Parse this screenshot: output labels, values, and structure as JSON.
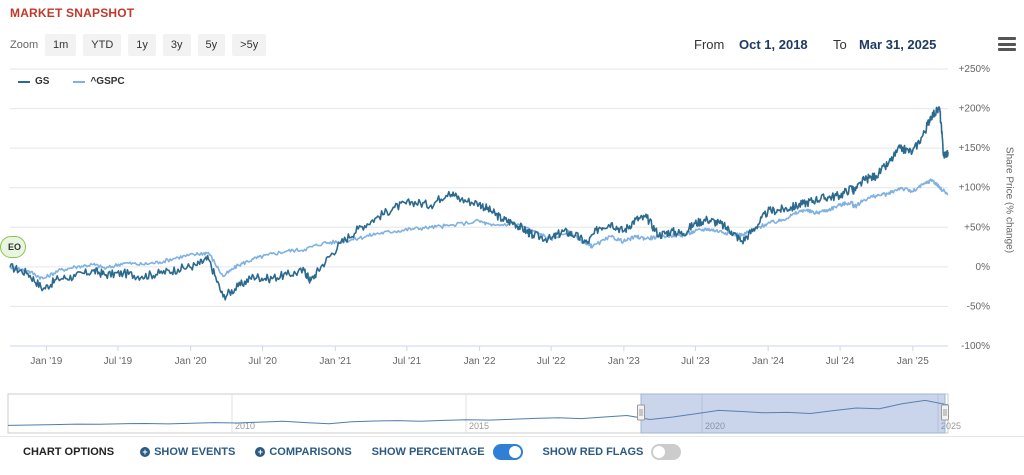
{
  "header": {
    "title": "MARKET SNAPSHOT",
    "zoom_label": "Zoom",
    "zoom_buttons": [
      "1m",
      "YTD",
      "1y",
      "3y",
      "5y",
      ">5y"
    ],
    "from_label": "From",
    "from_value": "Oct 1, 2018",
    "to_label": "To",
    "to_value": "Mar 31, 2025"
  },
  "event_marker": "EO",
  "navigator": {
    "year_labels": [
      "2010",
      "2015",
      "2020",
      "2025"
    ]
  },
  "options": {
    "chart_options": "CHART OPTIONS",
    "show_events": "SHOW EVENTS",
    "comparisons": "COMPARISONS",
    "show_percentage": "SHOW PERCENTAGE",
    "show_percentage_on": true,
    "show_red_flags": "SHOW RED FLAGS",
    "show_red_flags_on": false
  },
  "colors": {
    "gs": "#2b6a8e",
    "spx": "#7fb2e0",
    "accent": "#2f7fd6",
    "title": "#c0392b"
  },
  "chart_data": {
    "type": "line",
    "ylabel": "Share Price (% change)",
    "ylim": [
      -100,
      250
    ],
    "yticks": [
      250,
      200,
      150,
      100,
      50,
      0,
      -50,
      -100
    ],
    "ytick_labels": [
      "+250%",
      "+200%",
      "+150%",
      "+100%",
      "+50%",
      "0%",
      "-50%",
      "-100%"
    ],
    "xlim": [
      "2018-10-01",
      "2025-03-31"
    ],
    "xticks": [
      "2019-01-01",
      "2019-07-01",
      "2020-01-01",
      "2020-07-01",
      "2021-01-01",
      "2021-07-01",
      "2022-01-01",
      "2022-07-01",
      "2023-01-01",
      "2023-07-01",
      "2024-01-01",
      "2024-07-01",
      "2025-01-01"
    ],
    "xtick_labels": [
      "Jan '19",
      "Jul '19",
      "Jan '20",
      "Jul '20",
      "Jan '21",
      "Jul '21",
      "Jan '22",
      "Jul '22",
      "Jan '23",
      "Jul '23",
      "Jan '24",
      "Jul '24",
      "Jan '25"
    ],
    "grid": true,
    "legend": "top-left",
    "series": [
      {
        "name": "GS",
        "x": [
          "2018-10-01",
          "2018-11-15",
          "2018-12-24",
          "2019-01-31",
          "2019-03-15",
          "2019-04-30",
          "2019-06-01",
          "2019-07-15",
          "2019-08-31",
          "2019-10-15",
          "2019-11-30",
          "2020-01-15",
          "2020-02-15",
          "2020-03-23",
          "2020-04-30",
          "2020-06-08",
          "2020-07-15",
          "2020-08-31",
          "2020-10-15",
          "2020-10-30",
          "2020-11-30",
          "2021-01-15",
          "2021-02-28",
          "2021-04-15",
          "2021-05-31",
          "2021-07-15",
          "2021-08-31",
          "2021-10-15",
          "2021-11-15",
          "2021-12-31",
          "2022-01-31",
          "2022-02-28",
          "2022-03-31",
          "2022-04-30",
          "2022-05-15",
          "2022-06-30",
          "2022-07-31",
          "2022-08-31",
          "2022-09-30",
          "2022-10-31",
          "2022-11-30",
          "2022-12-31",
          "2023-01-31",
          "2023-02-28",
          "2023-03-31",
          "2023-04-30",
          "2023-05-31",
          "2023-06-30",
          "2023-07-31",
          "2023-08-31",
          "2023-09-30",
          "2023-10-27",
          "2023-11-30",
          "2023-12-31",
          "2024-01-31",
          "2024-02-29",
          "2024-03-31",
          "2024-04-30",
          "2024-05-31",
          "2024-06-30",
          "2024-07-31",
          "2024-08-05",
          "2024-08-31",
          "2024-09-30",
          "2024-10-31",
          "2024-11-30",
          "2024-12-31",
          "2025-01-31",
          "2025-02-15",
          "2025-03-10",
          "2025-03-20",
          "2025-03-31"
        ],
        "values": [
          0,
          -8,
          -28,
          -15,
          -12,
          -5,
          -10,
          -8,
          -12,
          -8,
          -3,
          2,
          10,
          -38,
          -25,
          -12,
          -15,
          -10,
          -5,
          -18,
          3,
          30,
          48,
          62,
          75,
          82,
          78,
          95,
          85,
          80,
          70,
          60,
          55,
          45,
          40,
          35,
          45,
          40,
          30,
          50,
          55,
          45,
          60,
          62,
          40,
          45,
          42,
          55,
          60,
          55,
          45,
          32,
          50,
          70,
          72,
          75,
          80,
          85,
          88,
          90,
          100,
          95,
          110,
          115,
          130,
          150,
          145,
          170,
          190,
          200,
          140,
          145
        ]
      },
      {
        "name": "^GSPC",
        "x": [
          "2018-10-01",
          "2018-11-15",
          "2018-12-24",
          "2019-01-31",
          "2019-03-15",
          "2019-04-30",
          "2019-06-01",
          "2019-07-15",
          "2019-08-31",
          "2019-10-15",
          "2019-11-30",
          "2020-01-15",
          "2020-02-15",
          "2020-03-23",
          "2020-04-30",
          "2020-06-08",
          "2020-07-15",
          "2020-08-31",
          "2020-10-15",
          "2020-11-30",
          "2021-01-15",
          "2021-02-28",
          "2021-04-15",
          "2021-05-31",
          "2021-07-15",
          "2021-08-31",
          "2021-10-15",
          "2021-12-31",
          "2022-01-31",
          "2022-03-31",
          "2022-05-31",
          "2022-06-30",
          "2022-08-15",
          "2022-09-30",
          "2022-10-15",
          "2022-11-30",
          "2022-12-31",
          "2023-01-31",
          "2023-02-28",
          "2023-03-31",
          "2023-04-30",
          "2023-05-31",
          "2023-06-30",
          "2023-07-31",
          "2023-08-31",
          "2023-09-30",
          "2023-10-27",
          "2023-11-30",
          "2023-12-31",
          "2024-01-31",
          "2024-02-29",
          "2024-03-31",
          "2024-04-30",
          "2024-05-31",
          "2024-06-30",
          "2024-07-31",
          "2024-08-05",
          "2024-08-31",
          "2024-09-30",
          "2024-10-31",
          "2024-11-30",
          "2024-12-31",
          "2025-01-31",
          "2025-02-19",
          "2025-03-10",
          "2025-03-31"
        ],
        "values": [
          0,
          -5,
          -15,
          -5,
          0,
          3,
          -2,
          5,
          3,
          6,
          12,
          16,
          18,
          -12,
          2,
          10,
          15,
          20,
          22,
          30,
          32,
          36,
          42,
          45,
          48,
          50,
          52,
          58,
          52,
          55,
          42,
          35,
          45,
          28,
          26,
          38,
          32,
          38,
          36,
          38,
          40,
          40,
          45,
          48,
          45,
          42,
          40,
          48,
          55,
          58,
          65,
          72,
          68,
          72,
          78,
          82,
          75,
          85,
          90,
          92,
          100,
          95,
          105,
          110,
          100,
          92
        ]
      }
    ]
  }
}
